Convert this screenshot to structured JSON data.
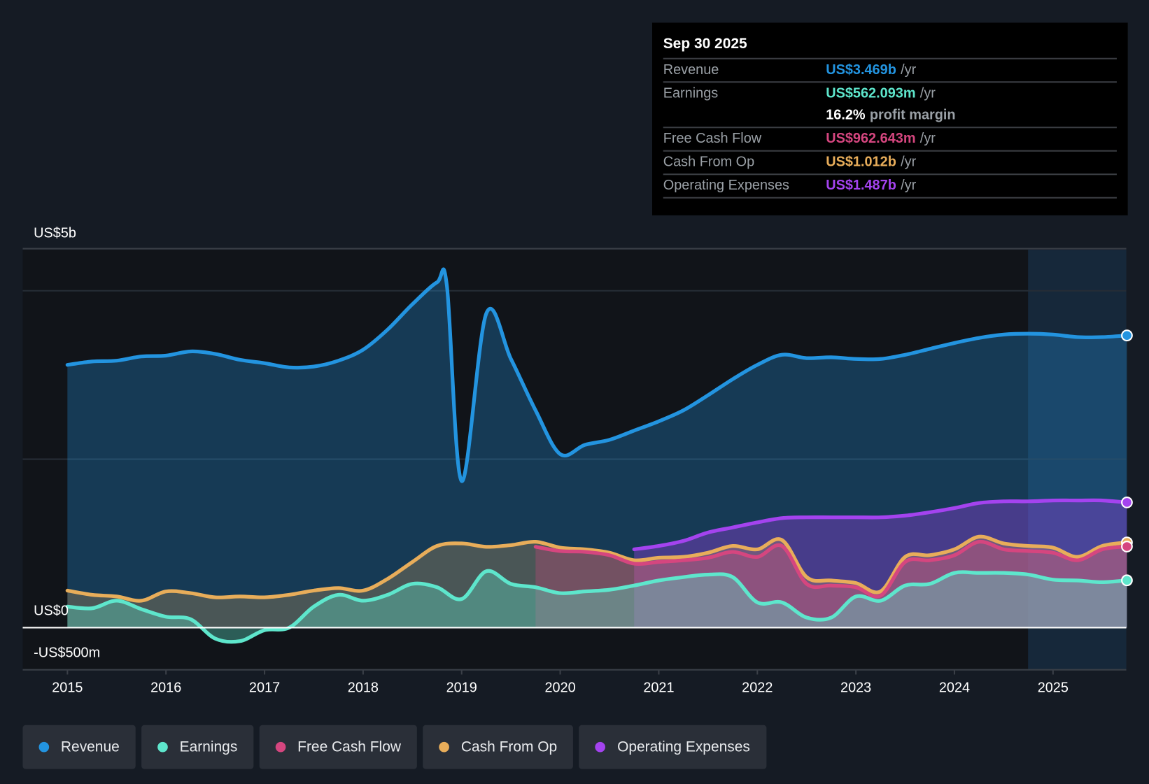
{
  "tooltip": {
    "date": "Sep 30 2025",
    "rows": [
      {
        "label": "Revenue",
        "value": "US$3.469b",
        "unit": "/yr",
        "color": "#2394e0"
      },
      {
        "label": "Earnings",
        "value": "US$562.093m",
        "unit": "/yr",
        "color": "#5ee6cc"
      },
      {
        "label": "",
        "value": "16.2%",
        "unit": "profit margin",
        "color": "#ffffff"
      },
      {
        "label": "Free Cash Flow",
        "value": "US$962.643m",
        "unit": "/yr",
        "color": "#d5467f"
      },
      {
        "label": "Cash From Op",
        "value": "US$1.012b",
        "unit": "/yr",
        "color": "#e8ad5a"
      },
      {
        "label": "Operating Expenses",
        "value": "US$1.487b",
        "unit": "/yr",
        "color": "#a443ef"
      }
    ]
  },
  "legend": [
    {
      "label": "Revenue",
      "color": "#2394e0"
    },
    {
      "label": "Earnings",
      "color": "#5ee6cc"
    },
    {
      "label": "Free Cash Flow",
      "color": "#d5467f"
    },
    {
      "label": "Cash From Op",
      "color": "#e8ad5a"
    },
    {
      "label": "Operating Expenses",
      "color": "#a443ef"
    }
  ],
  "chart_data": {
    "type": "area",
    "unit": "US$ billions",
    "y_labels": {
      "top": "US$5b",
      "zero": "US$0",
      "bottom": "-US$500m"
    },
    "ylim": [
      -0.5,
      4.5
    ],
    "xlim": [
      2014.55,
      2025.75
    ],
    "x_ticks": [
      "2015",
      "2016",
      "2017",
      "2018",
      "2019",
      "2020",
      "2021",
      "2022",
      "2023",
      "2024",
      "2025"
    ],
    "forecast_shade_from": 2024.75,
    "series": [
      {
        "name": "Revenue",
        "color": "#2394e0",
        "x": [
          2015,
          2015.25,
          2015.5,
          2015.75,
          2016,
          2016.25,
          2016.5,
          2016.75,
          2017,
          2017.25,
          2017.5,
          2017.75,
          2018,
          2018.25,
          2018.5,
          2018.75,
          2018.85,
          2019,
          2019.25,
          2019.5,
          2019.75,
          2020,
          2020.25,
          2020.5,
          2020.75,
          2021,
          2021.25,
          2021.5,
          2021.75,
          2022,
          2022.25,
          2022.5,
          2022.75,
          2023,
          2023.25,
          2023.5,
          2023.75,
          2024,
          2024.25,
          2024.5,
          2024.75,
          2025,
          2025.25,
          2025.5,
          2025.75
        ],
        "values": [
          3.12,
          3.16,
          3.17,
          3.22,
          3.23,
          3.28,
          3.25,
          3.18,
          3.14,
          3.09,
          3.1,
          3.17,
          3.3,
          3.54,
          3.84,
          4.1,
          4.06,
          1.74,
          3.73,
          3.19,
          2.58,
          2.06,
          2.17,
          2.23,
          2.34,
          2.45,
          2.58,
          2.76,
          2.95,
          3.12,
          3.24,
          3.2,
          3.21,
          3.19,
          3.19,
          3.24,
          3.31,
          3.38,
          3.44,
          3.48,
          3.49,
          3.48,
          3.45,
          3.45,
          3.469
        ]
      },
      {
        "name": "Earnings",
        "color": "#5ee6cc",
        "x": [
          2015,
          2015.25,
          2015.5,
          2015.75,
          2016,
          2016.25,
          2016.5,
          2016.75,
          2017,
          2017.25,
          2017.5,
          2017.75,
          2018,
          2018.25,
          2018.5,
          2018.75,
          2019,
          2019.25,
          2019.5,
          2019.75,
          2020,
          2020.25,
          2020.5,
          2020.75,
          2021,
          2021.25,
          2021.5,
          2021.75,
          2022,
          2022.25,
          2022.5,
          2022.75,
          2023,
          2023.25,
          2023.5,
          2023.75,
          2024,
          2024.25,
          2024.5,
          2024.75,
          2025,
          2025.25,
          2025.5,
          2025.75
        ],
        "values": [
          0.25,
          0.23,
          0.32,
          0.22,
          0.13,
          0.1,
          -0.13,
          -0.16,
          -0.03,
          0.0,
          0.25,
          0.39,
          0.32,
          0.39,
          0.52,
          0.48,
          0.34,
          0.67,
          0.52,
          0.48,
          0.41,
          0.43,
          0.45,
          0.5,
          0.56,
          0.6,
          0.63,
          0.6,
          0.3,
          0.3,
          0.12,
          0.12,
          0.37,
          0.32,
          0.5,
          0.52,
          0.65,
          0.65,
          0.65,
          0.63,
          0.57,
          0.56,
          0.54,
          0.562
        ]
      },
      {
        "name": "Cash From Op",
        "color": "#e8ad5a",
        "x": [
          2015,
          2015.25,
          2015.5,
          2015.75,
          2016,
          2016.25,
          2016.5,
          2016.75,
          2017,
          2017.25,
          2017.5,
          2017.75,
          2018,
          2018.25,
          2018.5,
          2018.75,
          2019,
          2019.25,
          2019.5,
          2019.75,
          2020,
          2020.25,
          2020.5,
          2020.75,
          2021,
          2021.25,
          2021.5,
          2021.75,
          2022,
          2022.25,
          2022.5,
          2022.75,
          2023,
          2023.25,
          2023.5,
          2023.75,
          2024,
          2024.25,
          2024.5,
          2024.75,
          2025,
          2025.25,
          2025.5,
          2025.75
        ],
        "values": [
          0.44,
          0.39,
          0.37,
          0.32,
          0.43,
          0.41,
          0.36,
          0.37,
          0.36,
          0.39,
          0.44,
          0.47,
          0.44,
          0.58,
          0.78,
          0.97,
          1.0,
          0.96,
          0.98,
          1.02,
          0.95,
          0.93,
          0.89,
          0.8,
          0.83,
          0.84,
          0.89,
          0.97,
          0.93,
          1.04,
          0.6,
          0.56,
          0.53,
          0.43,
          0.84,
          0.86,
          0.93,
          1.08,
          1.0,
          0.97,
          0.95,
          0.84,
          0.97,
          1.012
        ]
      },
      {
        "name": "Free Cash Flow",
        "color": "#d5467f",
        "x": [
          2019.75,
          2020,
          2020.25,
          2020.5,
          2020.75,
          2021,
          2021.25,
          2021.5,
          2021.75,
          2022,
          2022.25,
          2022.5,
          2022.75,
          2023,
          2023.25,
          2023.5,
          2023.75,
          2024,
          2024.25,
          2024.5,
          2024.75,
          2025,
          2025.25,
          2025.5,
          2025.75
        ],
        "values": [
          0.96,
          0.91,
          0.9,
          0.86,
          0.76,
          0.78,
          0.8,
          0.83,
          0.9,
          0.84,
          0.97,
          0.52,
          0.5,
          0.48,
          0.38,
          0.78,
          0.8,
          0.86,
          1.02,
          0.93,
          0.91,
          0.89,
          0.8,
          0.93,
          0.963
        ]
      },
      {
        "name": "Operating Expenses",
        "color": "#a443ef",
        "x": [
          2020.75,
          2021,
          2021.25,
          2021.5,
          2021.75,
          2022,
          2022.25,
          2022.5,
          2022.75,
          2023,
          2023.25,
          2023.5,
          2023.75,
          2024,
          2024.25,
          2024.5,
          2024.75,
          2025,
          2025.25,
          2025.5,
          2025.75
        ],
        "values": [
          0.93,
          0.97,
          1.03,
          1.13,
          1.19,
          1.25,
          1.3,
          1.31,
          1.31,
          1.31,
          1.31,
          1.33,
          1.37,
          1.42,
          1.48,
          1.5,
          1.5,
          1.51,
          1.51,
          1.51,
          1.487
        ]
      }
    ]
  }
}
